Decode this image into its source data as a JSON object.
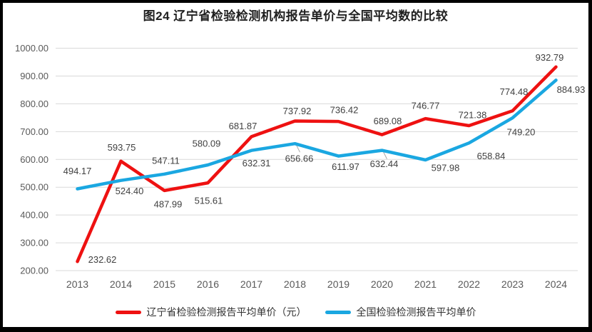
{
  "figure": {
    "title": "图24 辽宁省检验检测机构报告单价与全国平均数的比较"
  },
  "chart_data": {
    "type": "line",
    "title": "图24 辽宁省检验检测机构报告单价与全国平均数的比较",
    "categories": [
      "2013",
      "2014",
      "2015",
      "2016",
      "2017",
      "2018",
      "2019",
      "2020",
      "2021",
      "2022",
      "2023",
      "2024"
    ],
    "series": [
      {
        "name": "辽宁省检验检测报告平均单价（元）",
        "color": "#ee1111",
        "values": [
          232.62,
          593.75,
          487.99,
          515.61,
          681.87,
          737.92,
          736.42,
          689.08,
          746.77,
          721.38,
          774.48,
          932.79
        ],
        "label_offsets": [
          [
            35,
            -3
          ],
          [
            1,
            -19
          ],
          [
            5,
            19
          ],
          [
            1,
            25
          ],
          [
            -12,
            -15
          ],
          [
            3,
            -14
          ],
          [
            8,
            -16
          ],
          [
            8,
            -19
          ],
          [
            0,
            -18
          ],
          [
            5,
            -15
          ],
          [
            2,
            -27
          ],
          [
            -9,
            -13
          ]
        ]
      },
      {
        "name": "全国检验检测报告平均单价",
        "color": "#1aa7e1",
        "values": [
          494.17,
          524.4,
          547.11,
          580.09,
          632.31,
          656.66,
          611.97,
          632.44,
          597.98,
          658.84,
          749.2,
          884.93
        ],
        "label_offsets": [
          [
            0,
            -25
          ],
          [
            12,
            15
          ],
          [
            2,
            -19
          ],
          [
            -2,
            -30
          ],
          [
            7,
            18
          ],
          [
            6,
            21
          ],
          [
            10,
            15
          ],
          [
            3,
            19
          ],
          [
            28,
            11
          ],
          [
            31,
            18
          ],
          [
            12,
            20
          ],
          [
            21,
            13
          ]
        ],
        "leader_line_indices": [
          5,
          7
        ]
      }
    ],
    "ylim": [
      200,
      1000
    ],
    "ytick_interval": 100,
    "ytick_labels": [
      "200.00",
      "300.00",
      "400.00",
      "500.00",
      "600.00",
      "700.00",
      "800.00",
      "900.00",
      "1000.00"
    ],
    "data_label_format": "0.00",
    "grid": true,
    "legend_position": "bottom",
    "colors": {
      "grid": "#d9d9d9",
      "axis_text": "#595959",
      "data_label_text": "#404040",
      "leader_line": "#a6a6a6"
    }
  }
}
